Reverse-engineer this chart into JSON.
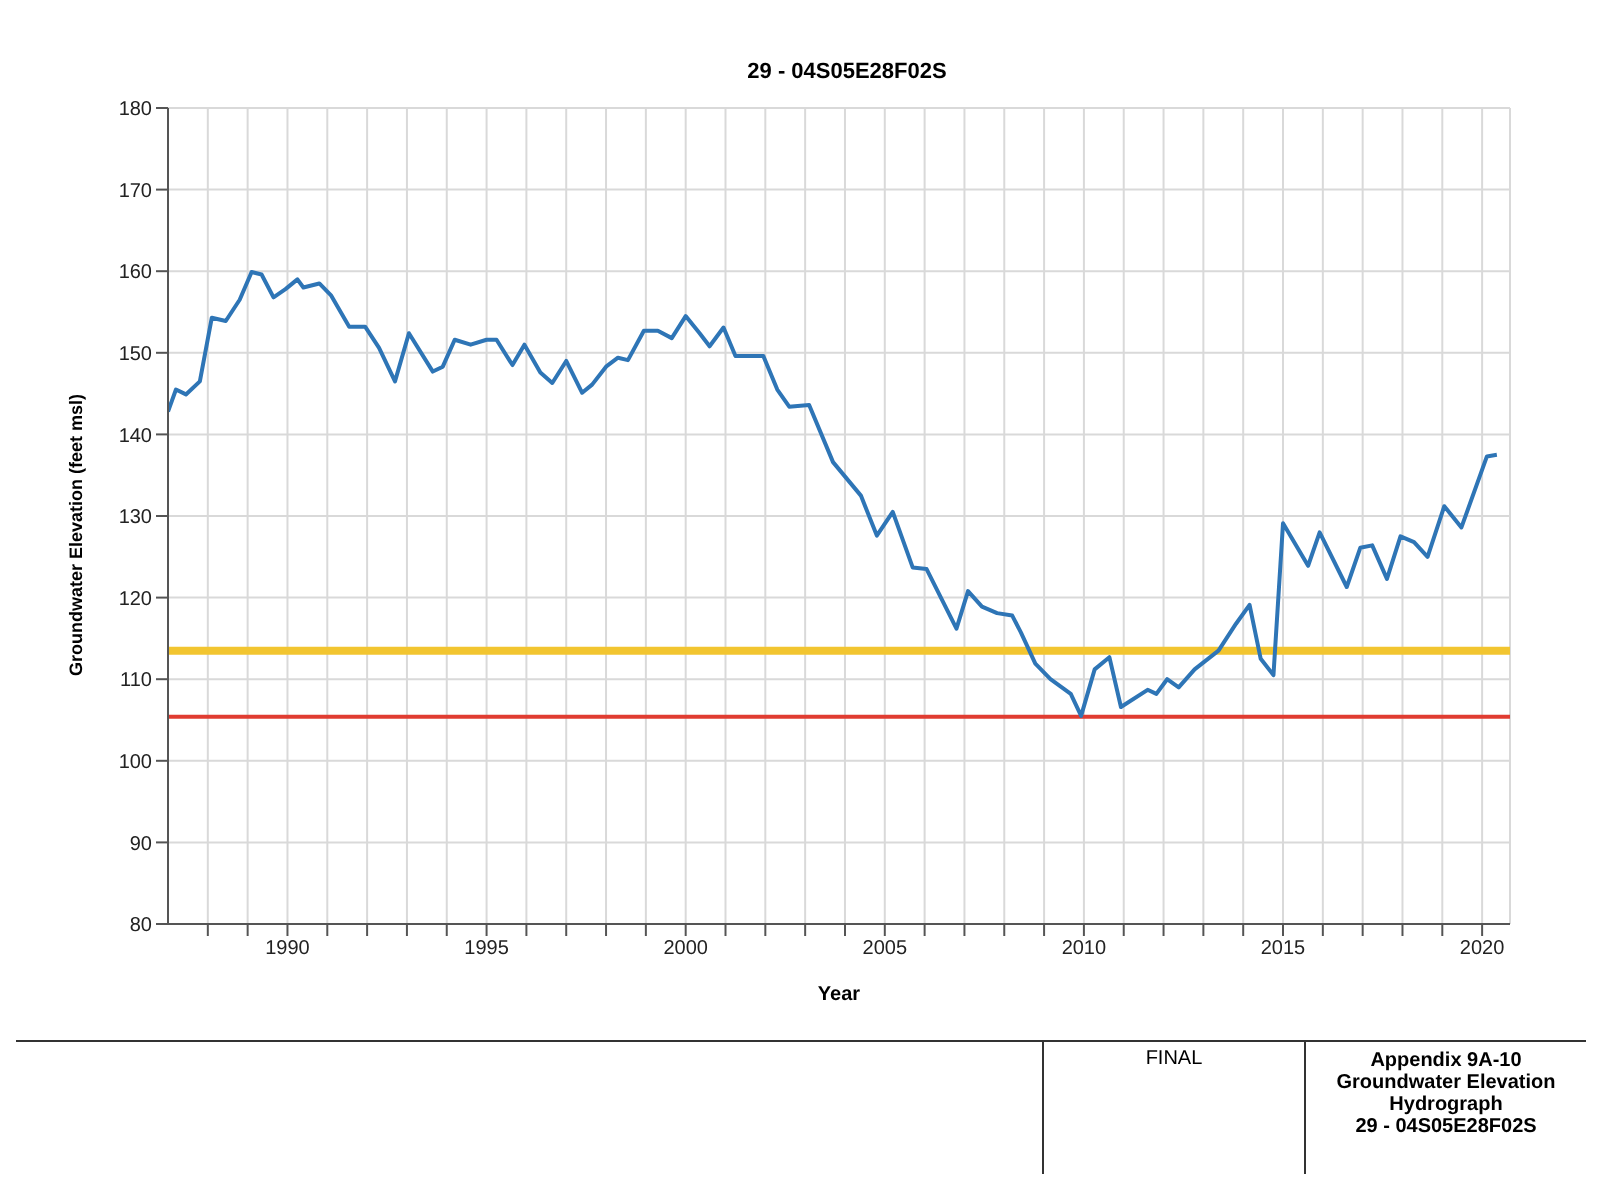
{
  "chart_data": {
    "type": "line",
    "title": "29 - 04S05E28F02S",
    "xlabel": "Year",
    "ylabel": "Groundwater Elevation (feet msl)",
    "x": [
      1987.0,
      1987.2,
      1987.45,
      1987.8,
      1988.1,
      1988.45,
      1988.8,
      1989.1,
      1989.35,
      1989.65,
      1989.95,
      1990.25,
      1990.4,
      1990.8,
      1991.1,
      1991.55,
      1991.95,
      1992.3,
      1992.7,
      1993.05,
      1993.65,
      1993.9,
      1994.2,
      1994.6,
      1995.0,
      1995.25,
      1995.65,
      1995.95,
      1996.35,
      1996.65,
      1997.0,
      1997.4,
      1997.65,
      1998.0,
      1998.3,
      1998.55,
      1998.95,
      1999.3,
      1999.65,
      2000.0,
      2000.35,
      2000.6,
      2000.95,
      2001.25,
      2001.95,
      2002.3,
      2002.6,
      2003.1,
      2003.7,
      2004.4,
      2004.8,
      2005.2,
      2005.7,
      2006.05,
      2006.8,
      2007.09,
      2007.44,
      2007.82,
      2008.2,
      2008.42,
      2008.78,
      2009.16,
      2009.67,
      2009.93,
      2010.27,
      2010.64,
      2010.93,
      2011.6,
      2011.82,
      2012.09,
      2012.38,
      2012.78,
      2013.38,
      2013.82,
      2014.16,
      2014.44,
      2014.76,
      2015.0,
      2015.63,
      2015.92,
      2016.6,
      2016.94,
      2017.24,
      2017.61,
      2017.95,
      2018.29,
      2018.63,
      2019.05,
      2019.48,
      2020.12,
      2020.37
    ],
    "series": [
      {
        "color": "#2e75b6",
        "values": [
          142.8,
          145.5,
          144.9,
          146.5,
          154.3,
          153.9,
          156.5,
          159.9,
          159.6,
          156.8,
          157.8,
          159.0,
          158.0,
          158.5,
          157.0,
          153.2,
          153.2,
          150.6,
          146.5,
          152.4,
          147.7,
          148.3,
          151.6,
          151.0,
          151.6,
          151.6,
          148.5,
          151.0,
          147.6,
          146.3,
          149.0,
          145.1,
          146.1,
          148.3,
          149.4,
          149.1,
          152.7,
          152.7,
          151.8,
          154.5,
          152.4,
          150.8,
          153.1,
          149.6,
          149.6,
          145.5,
          143.4,
          143.6,
          136.6,
          132.5,
          127.6,
          130.5,
          123.7,
          123.5,
          116.2,
          120.8,
          118.9,
          118.1,
          117.8,
          115.7,
          111.9,
          110.0,
          108.2,
          105.5,
          111.2,
          112.7,
          106.6,
          108.7,
          108.2,
          110.0,
          109.0,
          111.2,
          113.5,
          116.8,
          119.1,
          112.5,
          110.5,
          129.1,
          123.9,
          128.0,
          121.3,
          126.1,
          126.4,
          122.3,
          127.5,
          126.8,
          125.0,
          131.2,
          128.6,
          137.3,
          137.5
        ]
      }
    ],
    "xlim": [
      1987,
      2020.7
    ],
    "xticks": [
      {
        "value": 1988,
        "label": null
      },
      {
        "value": 1989,
        "label": null
      },
      1990,
      {
        "value": 1991,
        "label": null
      },
      {
        "value": 1992,
        "label": null
      },
      {
        "value": 1993,
        "label": null
      },
      {
        "value": 1994,
        "label": null
      },
      1995,
      {
        "value": 1996,
        "label": null
      },
      {
        "value": 1997,
        "label": null
      },
      {
        "value": 1998,
        "label": null
      },
      {
        "value": 1999,
        "label": null
      },
      2000,
      {
        "value": 2001,
        "label": null
      },
      {
        "value": 2002,
        "label": null
      },
      {
        "value": 2003,
        "label": null
      },
      {
        "value": 2004,
        "label": null
      },
      2005,
      {
        "value": 2006,
        "label": null
      },
      {
        "value": 2007,
        "label": null
      },
      {
        "value": 2008,
        "label": null
      },
      {
        "value": 2009,
        "label": null
      },
      2010,
      {
        "value": 2011,
        "label": null
      },
      {
        "value": 2012,
        "label": null
      },
      {
        "value": 2013,
        "label": null
      },
      {
        "value": 2014,
        "label": null
      },
      2015,
      {
        "value": 2016,
        "label": null
      },
      {
        "value": 2017,
        "label": null
      },
      {
        "value": 2018,
        "label": null
      },
      {
        "value": 2019,
        "label": null
      },
      2020
    ],
    "ylim": [
      80,
      180
    ],
    "yticks": [
      80,
      90,
      100,
      110,
      120,
      130,
      140,
      150,
      160,
      170,
      180
    ],
    "grid": true,
    "marker": "none",
    "line_style": "solid",
    "ref_lines": [
      {
        "axis": "y",
        "value": 113.5,
        "color": "#f2c530"
      },
      {
        "axis": "y",
        "value": 105.4,
        "color": "#e03c31"
      }
    ],
    "annotations": [
      "FINAL",
      "Appendix 9A-10\nGroundwater Elevation\nHydrograph\n29 - 04S05E28F02S"
    ]
  }
}
